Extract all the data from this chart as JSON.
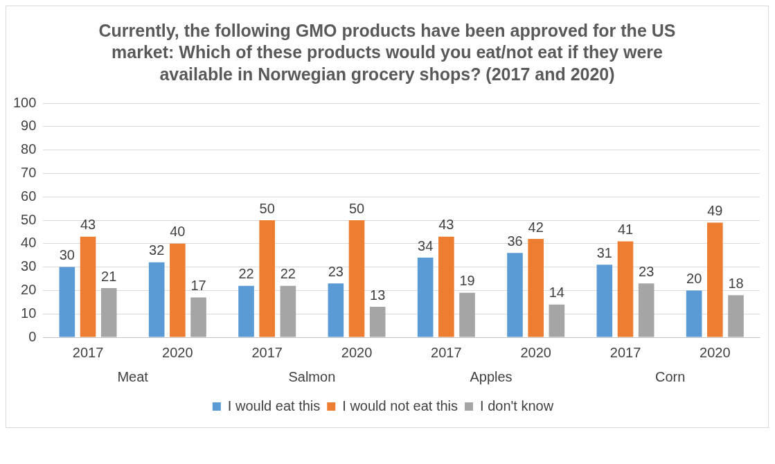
{
  "chart_data": {
    "type": "bar",
    "title": "Currently, the following GMO products have been approved for the US market: Which of these products would you eat/not eat if they were available in Norwegian grocery shops? (2017 and 2020)",
    "categories": [
      "2017",
      "2020",
      "2017",
      "2020",
      "2017",
      "2020",
      "2017",
      "2020"
    ],
    "annotations": [
      "Meat",
      "Salmon",
      "Apples",
      "Corn"
    ],
    "series": [
      {
        "name": "I would eat this",
        "color": "#5b9bd5",
        "values": [
          30,
          32,
          22,
          23,
          34,
          36,
          31,
          20
        ]
      },
      {
        "name": "I would not eat this",
        "color": "#ed7d31",
        "values": [
          43,
          40,
          50,
          50,
          43,
          42,
          41,
          49
        ]
      },
      {
        "name": "I don't know",
        "color": "#a5a5a5",
        "values": [
          21,
          17,
          22,
          13,
          19,
          14,
          23,
          18
        ]
      }
    ],
    "ylim": [
      0,
      100
    ],
    "yticks": [
      0,
      10,
      20,
      30,
      40,
      50,
      60,
      70,
      80,
      90,
      100
    ],
    "grid": "y",
    "legend": "bottom",
    "data_labels": true
  }
}
